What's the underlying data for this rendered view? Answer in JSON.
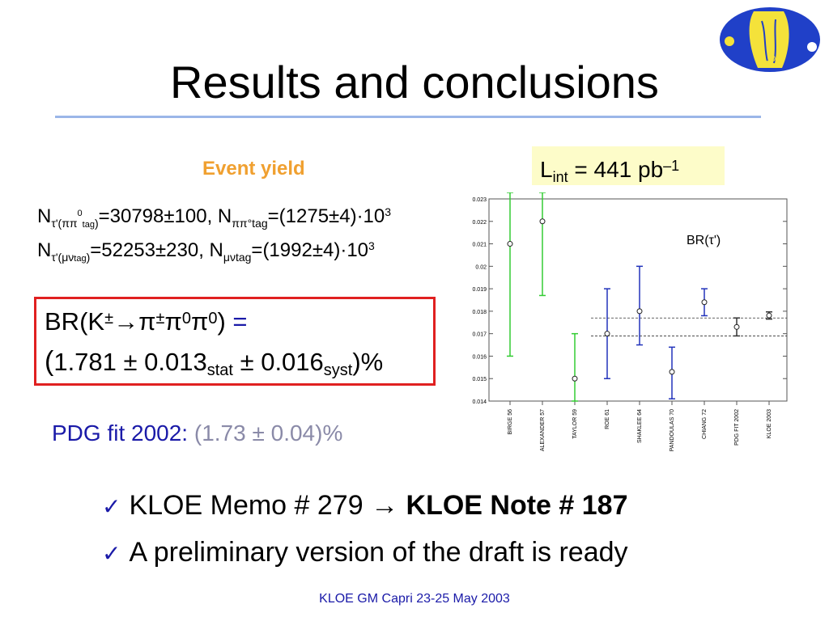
{
  "slide": {
    "title": "Results and conclusions",
    "event_yield_label": "Event yield",
    "lint": {
      "base": "L",
      "sub": "int",
      "mid": " = 441 pb",
      "sup": "–1"
    },
    "line1": {
      "n1": "N",
      "n1_sub": "τ'(ππ",
      "n1_sup": "0",
      "n1_sub2": "tag",
      "n1_close": ")",
      "val1": "=30798±100, N",
      "n2_sub": "ππ°tag",
      "val2": "=(1275±4)·10",
      "exp": "3"
    },
    "line2": {
      "n1": "N",
      "n1_sub": "τ'(μν",
      "n1_sub2": "tag",
      "n1_close": ")",
      "val1": "=52253±230, N",
      "n2_sub": "μνtag",
      "val2": "=(1992±4)·10",
      "exp": "3"
    },
    "br_result": {
      "line1_a": "BR(K",
      "line1_pm": "±",
      "line1_b": "→π",
      "line1_pm2": "±",
      "line1_c": "π",
      "line1_sup0a": "0",
      "line1_d": "π",
      "line1_sup0b": "0",
      "line1_e": ")",
      "equals": " =",
      "open": "(",
      "value": "1.781 ± 0.013",
      "stat": "stat",
      "mid": " ± 0.016",
      "syst": "syst",
      "close": ")%"
    },
    "pdg_label": "PDG fit 2002:",
    "pdg_value": " (1.73 ± 0.04)%",
    "bullet1_a": "KLOE Memo # 279 ",
    "bullet1_arrow": "→",
    "bullet1_b": " KLOE Note # 187",
    "bullet2": "A preliminary version of the draft is ready",
    "check": "✓",
    "footer": "KLOE GM Capri  23-25 May 2003",
    "logo_text": "KLOE"
  },
  "chart_data": {
    "type": "scatter",
    "title": "BR(τ')",
    "ylim": [
      0.014,
      0.023
    ],
    "y_ticks": [
      "0.014",
      "0.015",
      "0.016",
      "0.017",
      "0.018",
      "0.019",
      "0.02",
      "0.021",
      "0.022",
      "0.023"
    ],
    "categories": [
      "BIRGE 56",
      "ALEXANDER 57",
      "TAYLOR 59",
      "ROE 61",
      "SHAKLEE 64",
      "PANDOULAS 70",
      "CHIANG 72",
      "PDG FIT 2002",
      "KLOE 2003"
    ],
    "values": [
      0.021,
      0.022,
      0.015,
      0.017,
      0.018,
      0.0153,
      0.0184,
      0.0173,
      0.01781
    ],
    "err_low": [
      0.016,
      0.0187,
      0.014,
      0.015,
      0.0165,
      0.0141,
      0.0178,
      0.0169,
      0.01765
    ],
    "err_high": [
      0.0235,
      0.0235,
      0.017,
      0.019,
      0.02,
      0.0164,
      0.019,
      0.0177,
      0.01797
    ],
    "err_colors": [
      "#33cc33",
      "#33cc33",
      "#33cc33",
      "#2233bb",
      "#2233bb",
      "#2233bb",
      "#2233bb",
      "#333333",
      "#333333"
    ],
    "band": [
      0.0169,
      0.0177
    ]
  }
}
